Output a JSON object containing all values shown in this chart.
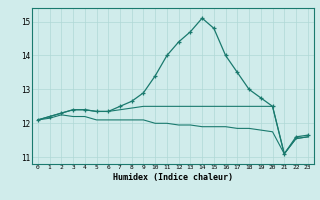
{
  "x": [
    0,
    1,
    2,
    3,
    4,
    5,
    6,
    7,
    8,
    9,
    10,
    11,
    12,
    13,
    14,
    15,
    16,
    17,
    18,
    19,
    20,
    21,
    22,
    23
  ],
  "line1": [
    12.1,
    12.2,
    12.3,
    12.4,
    12.4,
    12.35,
    12.35,
    12.5,
    12.65,
    12.9,
    13.4,
    14.0,
    14.4,
    14.7,
    15.1,
    14.8,
    14.0,
    13.5,
    13.0,
    12.75,
    12.5,
    11.1,
    11.6,
    11.65
  ],
  "line2": [
    12.1,
    12.2,
    12.3,
    12.4,
    12.4,
    12.35,
    12.35,
    12.4,
    12.45,
    12.5,
    12.5,
    12.5,
    12.5,
    12.5,
    12.5,
    12.5,
    12.5,
    12.5,
    12.5,
    12.5,
    12.5,
    11.1,
    11.55,
    11.6
  ],
  "line3": [
    12.1,
    12.15,
    12.25,
    12.2,
    12.2,
    12.1,
    12.1,
    12.1,
    12.1,
    12.1,
    12.0,
    12.0,
    11.95,
    11.95,
    11.9,
    11.9,
    11.9,
    11.85,
    11.85,
    11.8,
    11.75,
    11.1,
    11.55,
    11.6
  ],
  "line_color": "#1a7a6e",
  "background_color": "#d0eceb",
  "grid_color": "#b0d8d6",
  "xlabel": "Humidex (Indice chaleur)",
  "ylim": [
    10.8,
    15.4
  ],
  "xlim": [
    -0.5,
    23.5
  ],
  "yticks": [
    11,
    12,
    13,
    14,
    15
  ],
  "xticks": [
    0,
    1,
    2,
    3,
    4,
    5,
    6,
    7,
    8,
    9,
    10,
    11,
    12,
    13,
    14,
    15,
    16,
    17,
    18,
    19,
    20,
    21,
    22,
    23
  ]
}
